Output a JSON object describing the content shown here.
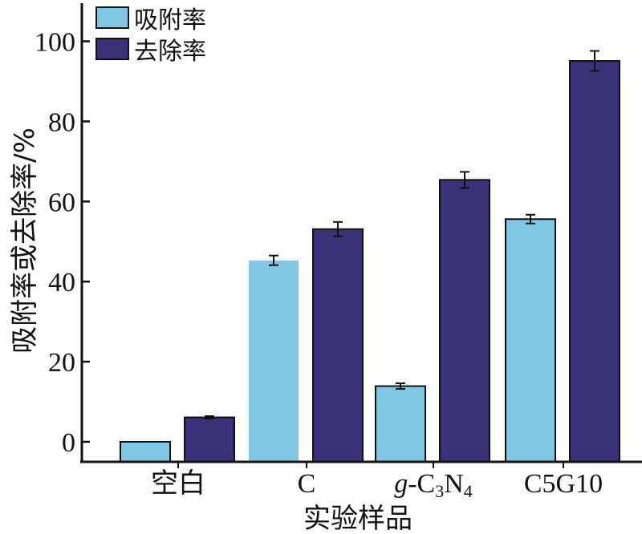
{
  "chart_data": {
    "type": "bar",
    "categories": [
      "空白",
      "C",
      "g-C3N4",
      "C5G10"
    ],
    "category_display": [
      {
        "text": "空白"
      },
      {
        "text": "C"
      },
      {
        "italic": "g",
        "rest": "-C",
        "sub1": "3",
        "mid": "N",
        "sub2": "4"
      },
      {
        "text": "C5G10"
      }
    ],
    "series": [
      {
        "name": "吸附率",
        "color": "#7EC8E3",
        "values": [
          0,
          45.3,
          13.9,
          55.6
        ],
        "errors": [
          0,
          1.2,
          0.7,
          1.1
        ]
      },
      {
        "name": "去除率",
        "color": "#3A3278",
        "values": [
          6.1,
          53.1,
          65.4,
          95.1
        ],
        "errors": [
          0.3,
          1.8,
          2.0,
          2.5
        ]
      }
    ],
    "ylabel": "吸附率或去除率/%",
    "xlabel": "实验样品",
    "ylim": [
      -5,
      110
    ],
    "yticks": [
      0,
      20,
      40,
      60,
      80,
      100
    ],
    "legend_position": "top-left",
    "grid": false
  }
}
